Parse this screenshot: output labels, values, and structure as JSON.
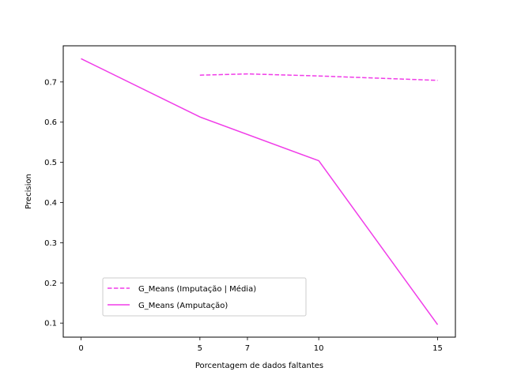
{
  "chart_data": {
    "type": "line",
    "title": "",
    "xlabel": "Porcentagem de dados faltantes",
    "ylabel": "Precision",
    "xlim": [
      -0.75,
      15.75
    ],
    "ylim": [
      0.065,
      0.79
    ],
    "xticks": [
      0,
      5,
      7,
      10,
      15
    ],
    "xtick_labels": [
      "0",
      "5",
      "7",
      "10",
      "15"
    ],
    "yticks": [
      0.1,
      0.2,
      0.3,
      0.4,
      0.5,
      0.6,
      0.7
    ],
    "ytick_labels": [
      "0.1",
      "0.2",
      "0.3",
      "0.4",
      "0.5",
      "0.6",
      "0.7"
    ],
    "grid": false,
    "legend_position": "lower-left",
    "series": [
      {
        "name": "G_Means (Imputação | Média)",
        "style": "dashed",
        "color": "#f03ce8",
        "x": [
          5,
          7,
          10,
          15
        ],
        "y": [
          0.717,
          0.72,
          0.715,
          0.704
        ]
      },
      {
        "name": "G_Means (Amputação)",
        "style": "solid",
        "color": "#f03ce8",
        "x": [
          0,
          5,
          10,
          15
        ],
        "y": [
          0.758,
          0.613,
          0.504,
          0.096
        ]
      }
    ]
  }
}
